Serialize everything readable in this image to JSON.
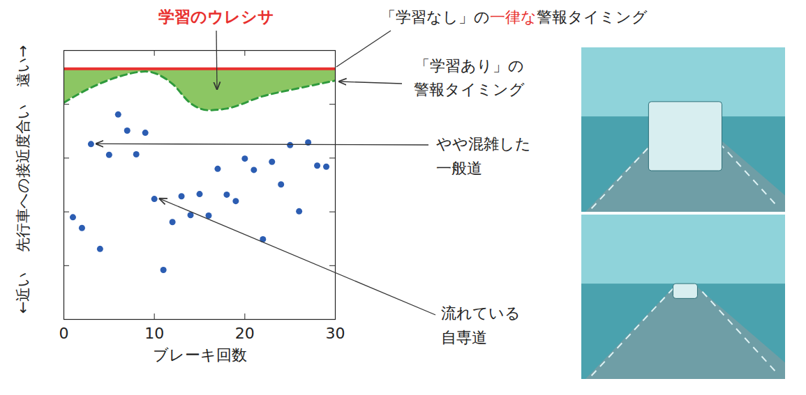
{
  "chart_data": {
    "type": "scatter",
    "x_label": "ブレーキ回数",
    "y_label": "先行車への接近度合い",
    "y_label_high": "遠い→",
    "y_label_low": "←近い",
    "xlim": [
      0,
      30
    ],
    "xticks": [
      0,
      10,
      20,
      30
    ],
    "ylim": [
      0,
      5
    ],
    "yticks": [
      1,
      2,
      3,
      4
    ],
    "tick_labels": "x",
    "grid": false,
    "series": [
      {
        "name": "「学習なし」の一律な警報タイミング",
        "highlight": "一律な",
        "type": "line",
        "color": "#e8302e",
        "line_style": "solid",
        "x": [
          0,
          30
        ],
        "values": [
          4.66,
          4.66
        ]
      },
      {
        "name": "「学習あり」の警報タイミング",
        "type": "line",
        "color": "#2f9a3c",
        "line_style": "dashed",
        "x": [
          0,
          3,
          6,
          9,
          12,
          14,
          16,
          18,
          22,
          26,
          30
        ],
        "values": [
          4.03,
          4.31,
          4.51,
          4.61,
          4.38,
          4.02,
          3.89,
          3.92,
          4.15,
          4.3,
          4.44
        ]
      },
      {
        "name": "学習のウレシサ",
        "type": "area",
        "color": "#8cc663"
      },
      {
        "type": "scatter",
        "color": "#2c5db2",
        "marker": "circle",
        "x": [
          1,
          2,
          3,
          4,
          5,
          6,
          7,
          8,
          9,
          10,
          11,
          12,
          13,
          14,
          15,
          16,
          17,
          18,
          19,
          20,
          21,
          22,
          23,
          24,
          25,
          26,
          27,
          28,
          29
        ],
        "values": [
          1.9,
          1.7,
          3.26,
          1.31,
          3.06,
          3.81,
          3.51,
          3.07,
          3.47,
          2.24,
          0.92,
          1.81,
          2.29,
          1.94,
          2.33,
          1.93,
          2.8,
          2.32,
          2.2,
          2.99,
          2.78,
          1.49,
          2.93,
          2.51,
          3.24,
          2.01,
          3.29,
          2.86,
          2.84
        ]
      }
    ],
    "annotations": [
      {
        "text": "やや混雑した一般道",
        "x": 3
      },
      {
        "text": "流れている自専道",
        "x": 10
      }
    ]
  }
}
